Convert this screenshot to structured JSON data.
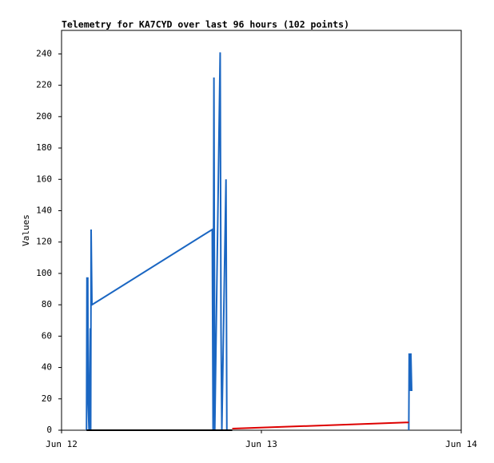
{
  "chart_data": {
    "type": "line",
    "title": "Telemetry for KA7CYD over last 96 hours (102 points)",
    "y_label": "Values",
    "xlim": [
      0,
      48
    ],
    "xticks": [
      {
        "value": 0,
        "label": "Jun 12"
      },
      {
        "value": 24,
        "label": "Jun 13"
      },
      {
        "value": 48,
        "label": "Jun 14"
      }
    ],
    "ylim": [
      0,
      255
    ],
    "yticks": [
      0,
      20,
      40,
      60,
      80,
      100,
      120,
      140,
      160,
      180,
      200,
      220,
      240
    ],
    "series": [
      {
        "color": "#1a66c2",
        "x": [
          3.0,
          3.05,
          3.15,
          3.2,
          3.3,
          3.45,
          3.5,
          3.55,
          3.65,
          18.1,
          18.2,
          18.3,
          18.4,
          19.05,
          19.15,
          19.25,
          19.75,
          19.85,
          30,
          41.7,
          41.75,
          41.85,
          41.95,
          42.05
        ],
        "values": [
          0,
          97,
          97,
          17,
          0,
          65,
          0,
          128,
          80,
          128,
          0,
          225,
          0,
          241,
          65,
          0,
          160,
          0,
          null,
          0,
          49,
          25,
          49,
          25
        ]
      },
      {
        "color": "#000000",
        "x": [
          3.0,
          20.5
        ],
        "values": [
          0,
          0
        ]
      },
      {
        "color": "#dd0000",
        "x": [
          20.5,
          41.7
        ],
        "values": [
          1,
          5
        ]
      }
    ]
  }
}
